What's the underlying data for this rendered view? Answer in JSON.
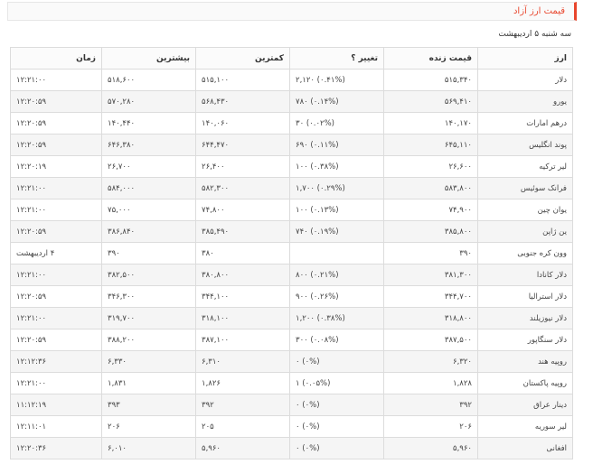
{
  "header": {
    "title": "قیمت ارز آزاد"
  },
  "date_line": "سه شنبه ۵ اردیبهشت",
  "table": {
    "columns": [
      "ارز",
      "قیمت زنده",
      "تغییر ؟",
      "کمترین",
      "بیشترین",
      "زمان"
    ],
    "rows": [
      {
        "currency": "دلار",
        "live": "۵۱۵,۳۴۰",
        "change": "(۰.۴۱%) ۲,۱۲۰",
        "trend": "down",
        "low": "۵۱۵,۱۰۰",
        "high": "۵۱۸,۶۰۰",
        "time": "۱۲:۲۱:۰۰"
      },
      {
        "currency": "یورو",
        "live": "۵۶۹,۴۱۰",
        "change": "(۰.۱۴%) ۷۸۰",
        "trend": "up",
        "low": "۵۶۸,۴۳۰",
        "high": "۵۷۰,۲۸۰",
        "time": "۱۲:۲۰:۵۹"
      },
      {
        "currency": "درهم امارات",
        "live": "۱۴۰,۱۷۰",
        "change": "(۰.۰۲%) ۳۰",
        "trend": "up",
        "low": "۱۴۰,۰۶۰",
        "high": "۱۴۰,۴۴۰",
        "time": "۱۲:۲۰:۵۹"
      },
      {
        "currency": "پوند انگلیس",
        "live": "۶۴۵,۱۱۰",
        "change": "(۰.۱۱%) ۶۹۰",
        "trend": "up",
        "low": "۶۴۴,۴۷۰",
        "high": "۶۴۶,۳۸۰",
        "time": "۱۲:۲۰:۵۹"
      },
      {
        "currency": "لیر ترکیه",
        "live": "۲۶,۶۰۰",
        "change": "(۰.۳۸%) ۱۰۰",
        "trend": "down",
        "low": "۲۶,۴۰۰",
        "high": "۲۶,۷۰۰",
        "time": "۱۲:۲۰:۱۹"
      },
      {
        "currency": "فرانک سوئیس",
        "live": "۵۸۳,۸۰۰",
        "change": "(۰.۲۹%) ۱,۷۰۰",
        "trend": "up",
        "low": "۵۸۲,۳۰۰",
        "high": "۵۸۴,۰۰۰",
        "time": "۱۲:۲۱:۰۰"
      },
      {
        "currency": "یوان چین",
        "live": "۷۴,۹۰۰",
        "change": "(۰.۱۳%) ۱۰۰",
        "trend": "down",
        "low": "۷۴,۸۰۰",
        "high": "۷۵,۰۰۰",
        "time": "۱۲:۲۱:۰۰"
      },
      {
        "currency": "ین ژاپن",
        "live": "۳۸۵,۸۰۰",
        "change": "(۰.۱۹%) ۷۴۰",
        "trend": "up",
        "low": "۳۸۵,۴۹۰",
        "high": "۳۸۶,۸۴۰",
        "time": "۱۲:۲۰:۵۹"
      },
      {
        "currency": "وون کره جنوبی",
        "live": "۳۹۰",
        "change": "",
        "trend": "zero",
        "low": "۳۸۰",
        "high": "۳۹۰",
        "time": "۴ اردیبهشت"
      },
      {
        "currency": "دلار کانادا",
        "live": "۳۸۱,۳۰۰",
        "change": "(۰.۲۱%) ۸۰۰",
        "trend": "down",
        "low": "۳۸۰,۸۰۰",
        "high": "۳۸۲,۵۰۰",
        "time": "۱۲:۲۱:۰۰"
      },
      {
        "currency": "دلار استرالیا",
        "live": "۳۴۴,۷۰۰",
        "change": "(۰.۲۶%) ۹۰۰",
        "trend": "down",
        "low": "۳۴۴,۱۰۰",
        "high": "۳۴۶,۳۰۰",
        "time": "۱۲:۲۰:۵۹"
      },
      {
        "currency": "دلار نیوزیلند",
        "live": "۳۱۸,۸۰۰",
        "change": "(۰.۳۸%) ۱,۲۰۰",
        "trend": "up",
        "low": "۳۱۸,۱۰۰",
        "high": "۳۱۹,۷۰۰",
        "time": "۱۲:۲۱:۰۰"
      },
      {
        "currency": "دلار سنگاپور",
        "live": "۳۸۷,۵۰۰",
        "change": "(۰.۰۸%) ۳۰۰",
        "trend": "down",
        "low": "۳۸۷,۱۰۰",
        "high": "۳۸۸,۲۰۰",
        "time": "۱۲:۲۰:۵۹"
      },
      {
        "currency": "روپیه هند",
        "live": "۶,۳۲۰",
        "change": "(۰%) ۰",
        "trend": "zero",
        "low": "۶,۳۱۰",
        "high": "۶,۳۳۰",
        "time": "۱۲:۱۲:۳۶"
      },
      {
        "currency": "روپیه پاکستان",
        "live": "۱,۸۲۸",
        "change": "(۰.۰۵%) ۱",
        "trend": "up",
        "low": "۱,۸۲۶",
        "high": "۱,۸۳۱",
        "time": "۱۲:۲۱:۰۰"
      },
      {
        "currency": "دینار عراق",
        "live": "۳۹۲",
        "change": "(۰%) ۰",
        "trend": "zero",
        "low": "۳۹۲",
        "high": "۳۹۳",
        "time": "۱۱:۱۲:۱۹"
      },
      {
        "currency": "لیر سوریه",
        "live": "۲۰۶",
        "change": "(۰%) ۰",
        "trend": "zero",
        "low": "۲۰۵",
        "high": "۲۰۶",
        "time": "۱۲:۱۱:۰۱"
      },
      {
        "currency": "افغانی",
        "live": "۵,۹۶۰",
        "change": "(۰%) ۰",
        "trend": "zero",
        "low": "۵,۹۶۰",
        "high": "۶,۰۱۰",
        "time": "۱۲:۲۰:۳۶"
      }
    ]
  },
  "colors": {
    "accent": "#e8452c",
    "up": "#2e9d3a",
    "down": "#e8452c"
  }
}
